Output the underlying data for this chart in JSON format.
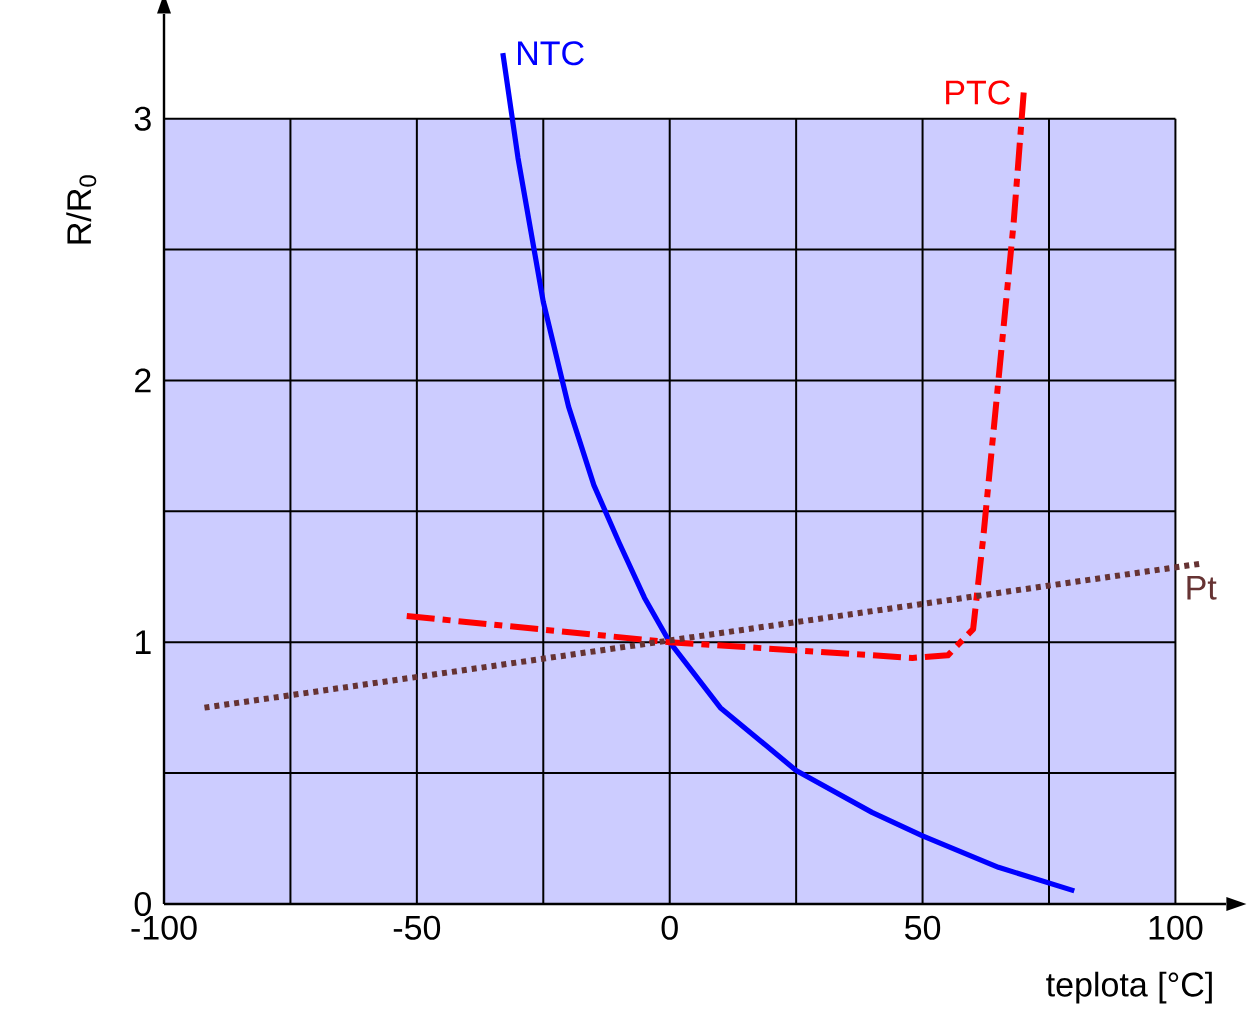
{
  "chart_data": {
    "type": "line",
    "xlabel": "teplota [°C]",
    "ylabel": "R/R$_{0}$",
    "xlim": [
      -100,
      110
    ],
    "ylim": [
      0,
      3.4
    ],
    "xticks": [
      -100,
      {
        "value": -75,
        "label": null
      },
      -50,
      {
        "value": -25,
        "label": null
      },
      0,
      {
        "value": 25,
        "label": null
      },
      50,
      {
        "value": 75,
        "label": null
      },
      100
    ],
    "yticks": [
      0,
      {
        "value": 0.5,
        "label": null
      },
      1,
      {
        "value": 1.5,
        "label": null
      },
      2,
      {
        "value": 2.5,
        "label": null
      },
      3
    ],
    "grid": true,
    "marker": "none",
    "bands": [
      {
        "axis": "y",
        "from": 0,
        "to": 3,
        "color": "#ccccff"
      }
    ],
    "series": [
      {
        "name": "NTC",
        "color": "#0000ff",
        "line_style": "solid",
        "x": [
          80,
          65,
          50,
          40,
          25,
          10,
          0,
          -5,
          -10,
          -15,
          -20,
          -25,
          -30,
          -33
        ],
        "values": [
          0.05,
          0.14,
          0.26,
          0.35,
          0.51,
          0.75,
          1,
          1.17,
          1.38,
          1.6,
          1.9,
          2.3,
          2.85,
          3.25
        ]
      },
      {
        "name": "PTC",
        "color": "#ff0000",
        "line_style": "dashed",
        "x": [
          -52,
          0,
          48,
          55,
          60,
          62,
          65,
          68,
          70
        ],
        "values": [
          1.1,
          1.0,
          0.94,
          0.95,
          1.05,
          1.4,
          2,
          2.6,
          3.1
        ]
      },
      {
        "name": "Pt",
        "color": "#663333",
        "line_style": "dotted",
        "x": [
          -92,
          105
        ],
        "values": [
          0.75,
          1.3
        ]
      }
    ]
  }
}
